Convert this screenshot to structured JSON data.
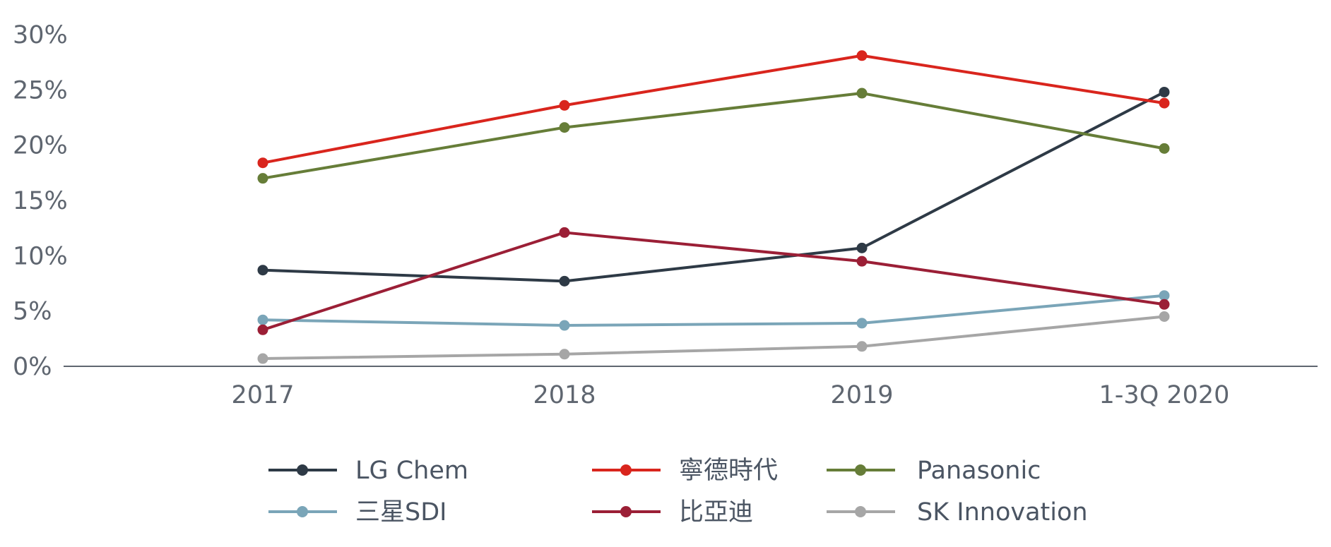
{
  "chart_data": {
    "type": "line",
    "title": "",
    "xlabel": "",
    "ylabel": "",
    "categories": [
      "2017",
      "2018",
      "2019",
      "1-3Q 2020"
    ],
    "y_ticks": [
      "0%",
      "5%",
      "10%",
      "15%",
      "20%",
      "25%",
      "30%"
    ],
    "ylim": [
      0,
      30
    ],
    "grid": false,
    "legend_position": "bottom",
    "series": [
      {
        "name": "LG Chem",
        "color": "#2e3a46",
        "values": [
          8.7,
          7.7,
          10.7,
          24.8
        ]
      },
      {
        "name": "寧德時代",
        "color": "#d9251d",
        "values": [
          18.4,
          23.6,
          28.1,
          23.8
        ]
      },
      {
        "name": "Panasonic",
        "color": "#667d38",
        "values": [
          17.0,
          21.6,
          24.7,
          19.7
        ]
      },
      {
        "name": "三星SDI",
        "color": "#7aa5b8",
        "values": [
          4.2,
          3.7,
          3.9,
          6.4
        ]
      },
      {
        "name": "比亞迪",
        "color": "#9b1f36",
        "values": [
          3.3,
          12.1,
          9.5,
          5.6
        ]
      },
      {
        "name": "SK Innovation",
        "color": "#a6a6a6",
        "values": [
          0.7,
          1.1,
          1.8,
          4.5
        ]
      }
    ]
  }
}
